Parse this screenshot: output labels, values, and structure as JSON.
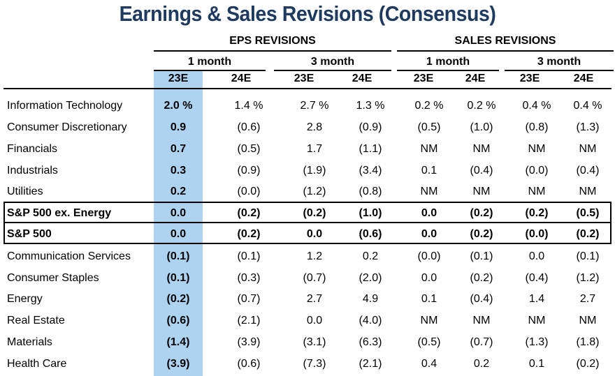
{
  "title": "Earnings & Sales Revisions (Consensus)",
  "groups": [
    "EPS REVISIONS",
    "SALES REVISIONS"
  ],
  "periods": [
    "1 month",
    "3 month",
    "1 month",
    "3 month"
  ],
  "years": [
    "23E",
    "24E",
    "23E",
    "24E",
    "23E",
    "24E",
    "23E",
    "24E"
  ],
  "rows": [
    {
      "label": "Information Technology",
      "values": [
        "2.0 %",
        "1.4 %",
        "2.7 %",
        "1.3 %",
        "0.2 %",
        "0.2 %",
        "0.4 %",
        "0.4 %"
      ]
    },
    {
      "label": "Consumer Discretionary",
      "values": [
        "0.9",
        "(0.6)",
        "2.8",
        "(0.9)",
        "(0.5)",
        "(1.0)",
        "(0.8)",
        "(1.3)"
      ]
    },
    {
      "label": "Financials",
      "values": [
        "0.7",
        "(0.5)",
        "1.7",
        "(1.1)",
        "NM",
        "NM",
        "NM",
        "NM"
      ]
    },
    {
      "label": "Industrials",
      "values": [
        "0.3",
        "(0.9)",
        "(1.9)",
        "(3.4)",
        "0.1",
        "(0.4)",
        "(0.0)",
        "(0.4)"
      ]
    },
    {
      "label": "Utilities",
      "values": [
        "0.2",
        "(0.0)",
        "(1.2)",
        "(0.8)",
        "NM",
        "NM",
        "NM",
        "NM"
      ]
    },
    {
      "label": "S&P 500 ex. Energy",
      "values": [
        "0.0",
        "(0.2)",
        "(0.2)",
        "(1.0)",
        "0.0",
        "(0.2)",
        "(0.2)",
        "(0.5)"
      ]
    },
    {
      "label": "S&P 500",
      "values": [
        "0.0",
        "(0.2)",
        "0.0",
        "(0.6)",
        "0.0",
        "(0.2)",
        "(0.0)",
        "(0.2)"
      ]
    },
    {
      "label": "Communication Services",
      "values": [
        "(0.1)",
        "(0.1)",
        "1.2",
        "0.2",
        "(0.0)",
        "(0.1)",
        "0.0",
        "(0.1)"
      ]
    },
    {
      "label": "Consumer Staples",
      "values": [
        "(0.1)",
        "(0.3)",
        "(0.7)",
        "(2.0)",
        "0.0",
        "(0.2)",
        "(0.4)",
        "(1.2)"
      ]
    },
    {
      "label": "Energy",
      "values": [
        "(0.2)",
        "(0.7)",
        "2.7",
        "4.9",
        "0.1",
        "(0.4)",
        "1.4",
        "2.7"
      ]
    },
    {
      "label": "Real Estate",
      "values": [
        "(0.6)",
        "(2.1)",
        "0.0",
        "(4.0)",
        "NM",
        "NM",
        "NM",
        "NM"
      ]
    },
    {
      "label": "Materials",
      "values": [
        "(1.4)",
        "(3.9)",
        "(3.1)",
        "(6.3)",
        "(0.5)",
        "(0.7)",
        "(1.3)",
        "(1.8)"
      ]
    },
    {
      "label": "Health Care",
      "values": [
        "(3.9)",
        "(0.6)",
        "(7.3)",
        "(2.1)",
        "0.4",
        "0.2",
        "0.1",
        "(0.2)"
      ]
    }
  ],
  "colors": {
    "title": "#1f3a5f",
    "highlight": "#aed3f0"
  }
}
